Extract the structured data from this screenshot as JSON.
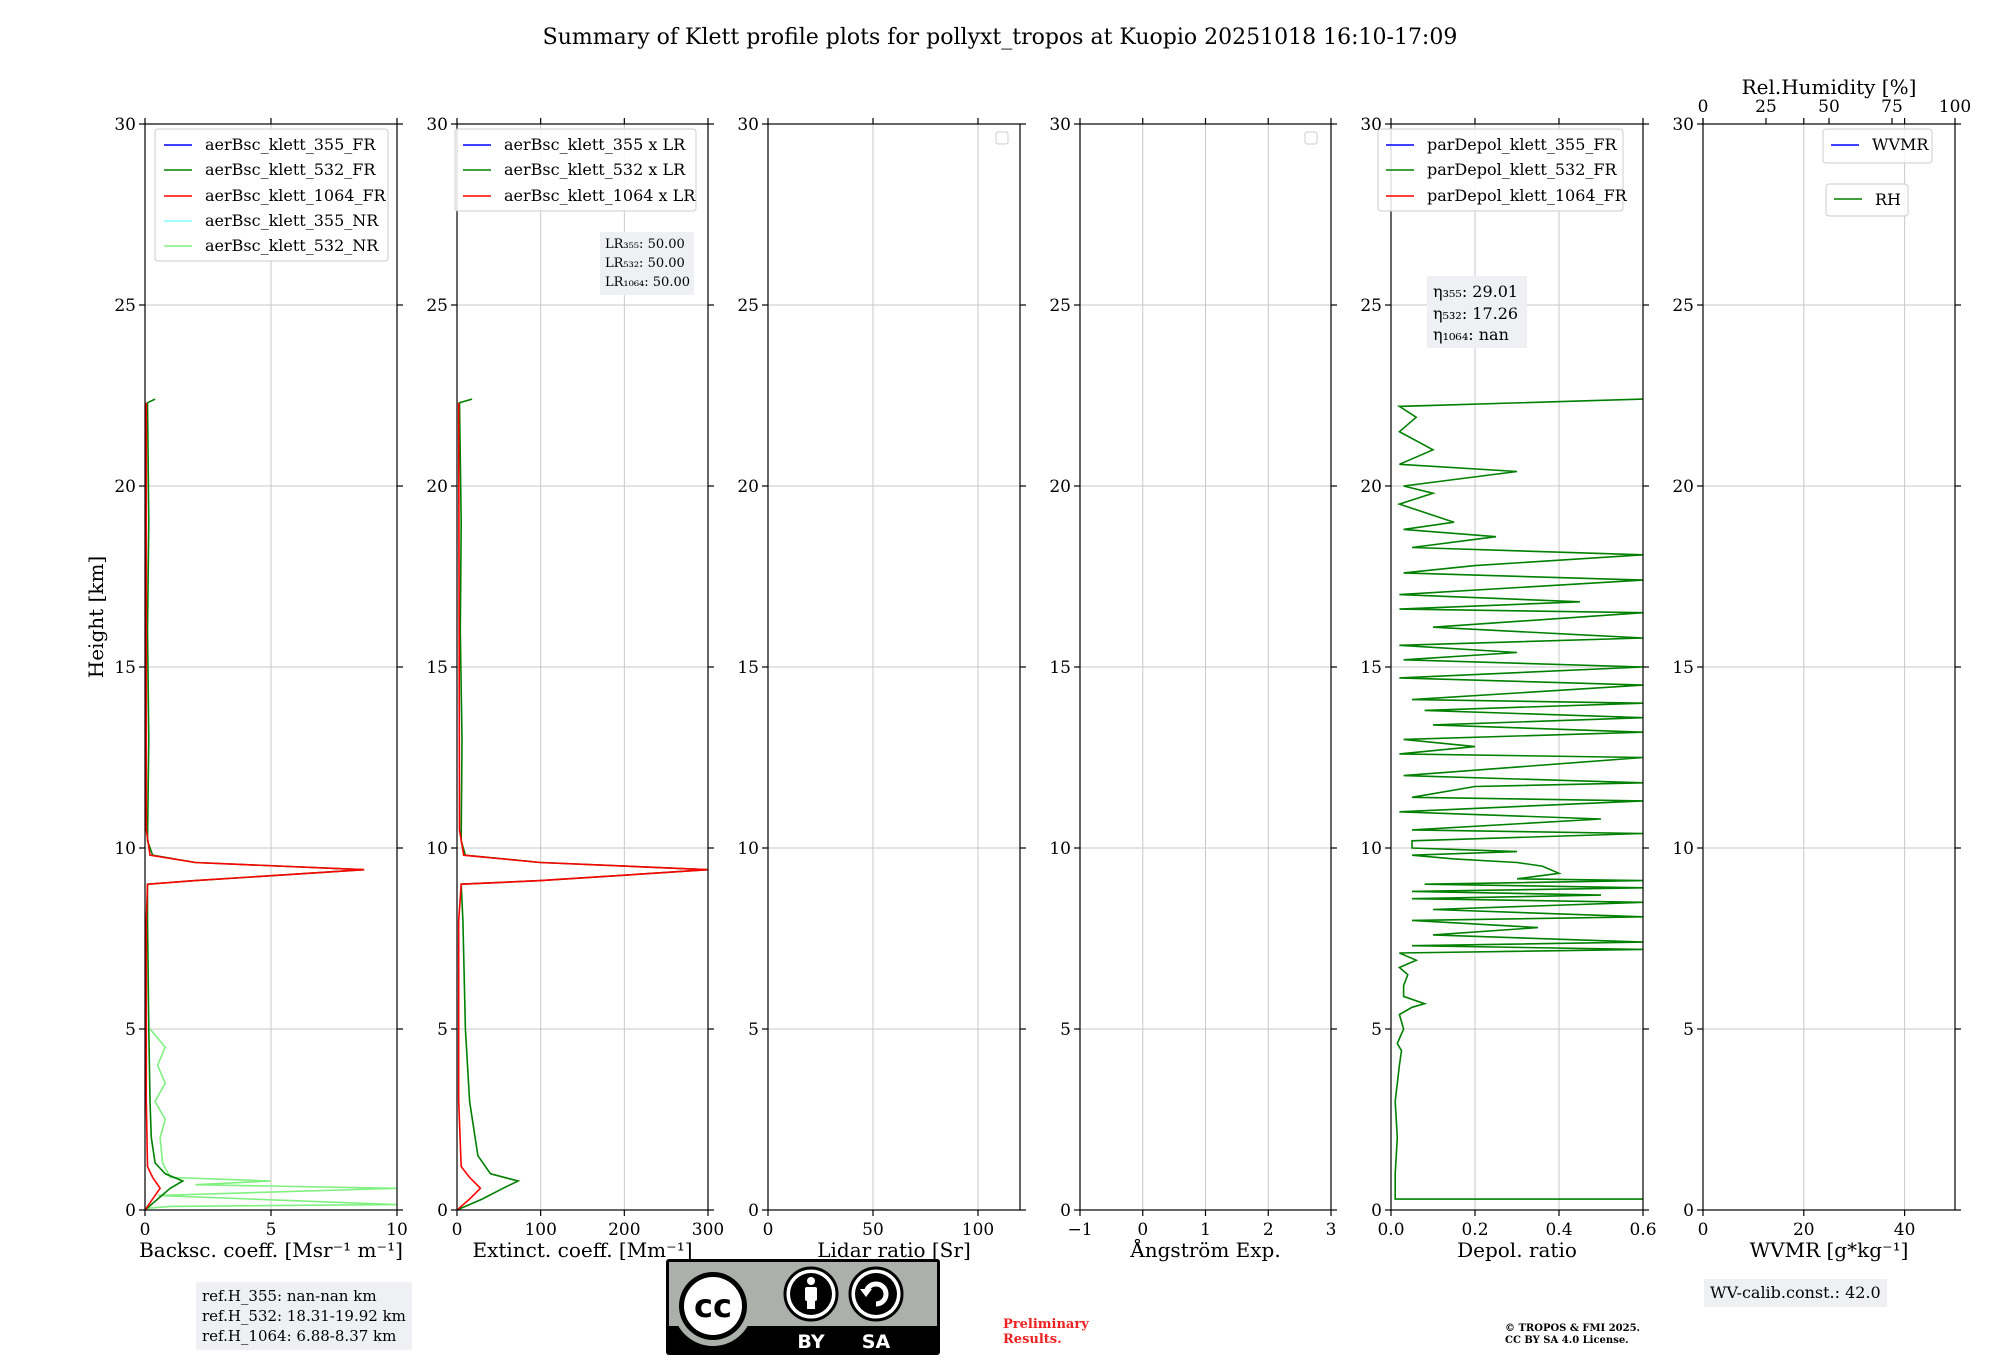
{
  "title": "Summary of Klett profile plots for pollyxt_tropos at Kuopio 20251018 16:10-17:09",
  "colors": {
    "c355": "#0000ff",
    "c532": "#008000",
    "c1064": "#ff0000",
    "cNR355": "#80ffff",
    "cNR532": "#80f080",
    "grid": "#c8c8c8",
    "prelim": "#ee2222"
  },
  "shared_ylabel": "Height [km]",
  "chart_data": [
    {
      "id": "backscatter",
      "type": "line",
      "xlabel": "Backsc. coeff. [Msr⁻¹ m⁻¹]",
      "xlim": [
        0,
        10
      ],
      "xticks": [
        0,
        5,
        10
      ],
      "ylim": [
        0,
        30
      ],
      "yticks": [
        0,
        5,
        10,
        15,
        20,
        25,
        30
      ],
      "legend": [
        "aerBsc_klett_355_FR",
        "aerBsc_klett_532_FR",
        "aerBsc_klett_1064_FR",
        "aerBsc_klett_355_NR",
        "aerBsc_klett_532_NR"
      ],
      "series": [
        {
          "name": "aerBsc_klett_532_NR",
          "color": "#80f080",
          "points": [
            [
              0.1,
              0.05
            ],
            [
              1,
              0.1
            ],
            [
              10,
              0.15
            ],
            [
              0.5,
              0.4
            ],
            [
              10,
              0.6
            ],
            [
              2,
              0.7
            ],
            [
              5,
              0.8
            ],
            [
              1,
              0.9
            ],
            [
              0.7,
              1.3
            ],
            [
              0.6,
              2
            ],
            [
              0.8,
              2.5
            ],
            [
              0.4,
              3
            ],
            [
              0.8,
              3.5
            ],
            [
              0.5,
              4
            ],
            [
              0.8,
              4.5
            ],
            [
              0.2,
              5
            ]
          ]
        },
        {
          "name": "aerBsc_klett_532_FR",
          "color": "#008000",
          "points": [
            [
              0,
              0.0
            ],
            [
              0.5,
              0.3
            ],
            [
              1,
              0.6
            ],
            [
              1.5,
              0.8
            ],
            [
              0.8,
              1.0
            ],
            [
              0.4,
              1.3
            ],
            [
              0.25,
              2
            ],
            [
              0.2,
              3
            ],
            [
              0.15,
              5
            ],
            [
              0.1,
              8
            ],
            [
              0.1,
              9.0
            ],
            [
              2,
              9.1
            ],
            [
              8.7,
              9.4
            ],
            [
              2,
              9.6
            ],
            [
              0.3,
              9.8
            ],
            [
              0.1,
              10.2
            ],
            [
              0.15,
              13
            ],
            [
              0.1,
              16
            ],
            [
              0.15,
              19
            ],
            [
              0.1,
              22.3
            ],
            [
              0.4,
              22.4
            ]
          ]
        },
        {
          "name": "aerBsc_klett_1064_FR",
          "color": "#ff0000",
          "points": [
            [
              0,
              0.0
            ],
            [
              0.3,
              0.3
            ],
            [
              0.6,
              0.6
            ],
            [
              0.3,
              0.9
            ],
            [
              0.1,
              1.2
            ],
            [
              0.05,
              3
            ],
            [
              0.05,
              8
            ],
            [
              0.1,
              9.0
            ],
            [
              2,
              9.1
            ],
            [
              8.7,
              9.4
            ],
            [
              2,
              9.6
            ],
            [
              0.2,
              9.8
            ],
            [
              0.05,
              10.5
            ],
            [
              0.05,
              22.3
            ]
          ]
        }
      ]
    },
    {
      "id": "extinction",
      "type": "line",
      "xlabel": "Extinct. coeff. [Mm⁻¹]",
      "xlim": [
        0,
        300
      ],
      "xticks": [
        0,
        100,
        200,
        300
      ],
      "ylim": [
        0,
        30
      ],
      "yticks": [
        0,
        5,
        10,
        15,
        20,
        25,
        30
      ],
      "legend": [
        "aerBsc_klett_355 x LR",
        "aerBsc_klett_532 x LR",
        "aerBsc_klett_1064 x LR"
      ],
      "lr_labels": [
        "LR₃₅₅: 50.00",
        "LR₅₃₂: 50.00",
        "LR₁₀₆₄: 50.00"
      ],
      "series": [
        {
          "name": "aerBsc_klett_532 x LR",
          "color": "#008000",
          "points": [
            [
              0,
              0.0
            ],
            [
              30,
              0.3
            ],
            [
              55,
              0.6
            ],
            [
              73,
              0.8
            ],
            [
              40,
              1.0
            ],
            [
              25,
              1.5
            ],
            [
              15,
              3
            ],
            [
              10,
              5
            ],
            [
              7,
              8
            ],
            [
              5,
              9.0
            ],
            [
              100,
              9.1
            ],
            [
              300,
              9.4
            ],
            [
              100,
              9.6
            ],
            [
              10,
              9.8
            ],
            [
              5,
              10.2
            ],
            [
              6,
              13
            ],
            [
              4,
              16
            ],
            [
              5,
              19
            ],
            [
              3,
              22.3
            ],
            [
              18,
              22.4
            ]
          ]
        },
        {
          "name": "aerBsc_klett_1064 x LR",
          "color": "#ff0000",
          "points": [
            [
              0,
              0.0
            ],
            [
              15,
              0.3
            ],
            [
              28,
              0.6
            ],
            [
              15,
              0.9
            ],
            [
              5,
              1.2
            ],
            [
              2,
              3
            ],
            [
              2,
              8
            ],
            [
              5,
              9.0
            ],
            [
              100,
              9.1
            ],
            [
              300,
              9.4
            ],
            [
              100,
              9.6
            ],
            [
              8,
              9.8
            ],
            [
              3,
              10.5
            ],
            [
              2,
              22.3
            ]
          ]
        }
      ]
    },
    {
      "id": "lidar_ratio",
      "type": "line",
      "xlabel": "Lidar ratio [Sr]",
      "xlim": [
        0,
        120
      ],
      "xticks": [
        0,
        50,
        100
      ],
      "ylim": [
        0,
        30
      ],
      "yticks": [
        0,
        5,
        10,
        15,
        20,
        25,
        30
      ],
      "series": []
    },
    {
      "id": "angstrom",
      "type": "line",
      "xlabel": "Ångström Exp.",
      "xlim": [
        -1,
        3
      ],
      "xticks": [
        -1,
        0,
        1,
        2,
        3
      ],
      "ylim": [
        0,
        30
      ],
      "yticks": [
        0,
        5,
        10,
        15,
        20,
        25,
        30
      ],
      "series": []
    },
    {
      "id": "depol",
      "type": "line",
      "xlabel": "Depol. ratio",
      "xlim": [
        0.0,
        0.6
      ],
      "xticks": [
        0.0,
        0.2,
        0.4,
        0.6
      ],
      "xticklabels": [
        "0.0",
        "0.2",
        "0.4",
        "0.6"
      ],
      "ylim": [
        0,
        30
      ],
      "yticks": [
        0,
        5,
        10,
        15,
        20,
        25,
        30
      ],
      "legend": [
        "parDepol_klett_355_FR",
        "parDepol_klett_532_FR",
        "parDepol_klett_1064_FR"
      ],
      "eta_labels": [
        "η₃₅₅: 29.01",
        "η₅₃₂: 17.26",
        "η₁₀₆₄: nan"
      ],
      "series": [
        {
          "name": "parDepol_klett_532_FR",
          "color": "#008000",
          "points": [
            [
              0.6,
              0.3
            ],
            [
              0.01,
              0.3
            ],
            [
              0.01,
              1
            ],
            [
              0.015,
              2
            ],
            [
              0.01,
              3
            ],
            [
              0.02,
              4.0
            ],
            [
              0.025,
              4.4
            ],
            [
              0.015,
              4.6
            ],
            [
              0.03,
              5.0
            ],
            [
              0.02,
              5.4
            ],
            [
              0.05,
              5.6
            ],
            [
              0.08,
              5.7
            ],
            [
              0.03,
              5.9
            ],
            [
              0.03,
              6.2
            ],
            [
              0.04,
              6.5
            ],
            [
              0.02,
              6.7
            ],
            [
              0.06,
              6.9
            ],
            [
              0.02,
              7.1
            ],
            [
              0.6,
              7.2
            ],
            [
              0.05,
              7.3
            ],
            [
              0.6,
              7.4
            ],
            [
              0.1,
              7.6
            ],
            [
              0.35,
              7.8
            ],
            [
              0.05,
              8.0
            ],
            [
              0.6,
              8.1
            ],
            [
              0.1,
              8.3
            ],
            [
              0.6,
              8.5
            ],
            [
              0.05,
              8.6
            ],
            [
              0.5,
              8.7
            ],
            [
              0.05,
              8.8
            ],
            [
              0.6,
              8.9
            ],
            [
              0.08,
              9.0
            ],
            [
              0.6,
              9.1
            ],
            [
              0.3,
              9.15
            ],
            [
              0.4,
              9.3
            ],
            [
              0.36,
              9.5
            ],
            [
              0.3,
              9.6
            ],
            [
              0.15,
              9.7
            ],
            [
              0.05,
              9.8
            ],
            [
              0.3,
              9.9
            ],
            [
              0.05,
              10.0
            ],
            [
              0.05,
              10.2
            ],
            [
              0.6,
              10.4
            ],
            [
              0.05,
              10.5
            ],
            [
              0.5,
              10.8
            ],
            [
              0.02,
              11.0
            ],
            [
              0.6,
              11.3
            ],
            [
              0.05,
              11.4
            ],
            [
              0.2,
              11.7
            ],
            [
              0.6,
              11.8
            ],
            [
              0.03,
              12.0
            ],
            [
              0.6,
              12.5
            ],
            [
              0.02,
              12.6
            ],
            [
              0.2,
              12.8
            ],
            [
              0.03,
              13.0
            ],
            [
              0.6,
              13.2
            ],
            [
              0.1,
              13.4
            ],
            [
              0.6,
              13.6
            ],
            [
              0.08,
              13.8
            ],
            [
              0.6,
              14.0
            ],
            [
              0.05,
              14.1
            ],
            [
              0.6,
              14.5
            ],
            [
              0.02,
              14.7
            ],
            [
              0.6,
              15.0
            ],
            [
              0.03,
              15.2
            ],
            [
              0.3,
              15.4
            ],
            [
              0.02,
              15.6
            ],
            [
              0.6,
              15.8
            ],
            [
              0.1,
              16.1
            ],
            [
              0.6,
              16.5
            ],
            [
              0.02,
              16.6
            ],
            [
              0.45,
              16.8
            ],
            [
              0.02,
              17.0
            ],
            [
              0.6,
              17.4
            ],
            [
              0.03,
              17.6
            ],
            [
              0.2,
              17.8
            ],
            [
              0.6,
              18.1
            ],
            [
              0.05,
              18.3
            ],
            [
              0.25,
              18.6
            ],
            [
              0.03,
              18.8
            ],
            [
              0.15,
              19.0
            ],
            [
              0.02,
              19.5
            ],
            [
              0.1,
              19.8
            ],
            [
              0.03,
              20.0
            ],
            [
              0.3,
              20.4
            ],
            [
              0.02,
              20.6
            ],
            [
              0.1,
              21.0
            ],
            [
              0.02,
              21.5
            ],
            [
              0.06,
              21.9
            ],
            [
              0.02,
              22.2
            ],
            [
              0.6,
              22.4
            ]
          ]
        }
      ]
    },
    {
      "id": "wvmr",
      "type": "line",
      "xlabel": "WVMR [g*kg⁻¹]",
      "xlim": [
        0,
        50
      ],
      "xticks": [
        0,
        20,
        40
      ],
      "ylim": [
        0,
        30
      ],
      "yticks": [
        0,
        5,
        10,
        15,
        20,
        25,
        30
      ],
      "top_xlabel": "Rel.Humidity [%]",
      "top_xticks": [
        0,
        25,
        50,
        75,
        100
      ],
      "legend": [
        "WVMR"
      ],
      "legend2": [
        "RH"
      ],
      "wv_calib": "WV-calib.const.: 42.0",
      "series": []
    }
  ],
  "ref_heights": [
    "ref.H_355: nan-nan km",
    "ref.H_532: 18.31-19.92 km",
    "ref.H_1064: 6.88-8.37 km"
  ],
  "license_logo": {
    "by": "BY",
    "sa": "SA"
  },
  "preliminary": [
    "Preliminary",
    "Results."
  ],
  "copyright": [
    "© TROPOS & FMI 2025.",
    "CC BY SA 4.0 License."
  ]
}
